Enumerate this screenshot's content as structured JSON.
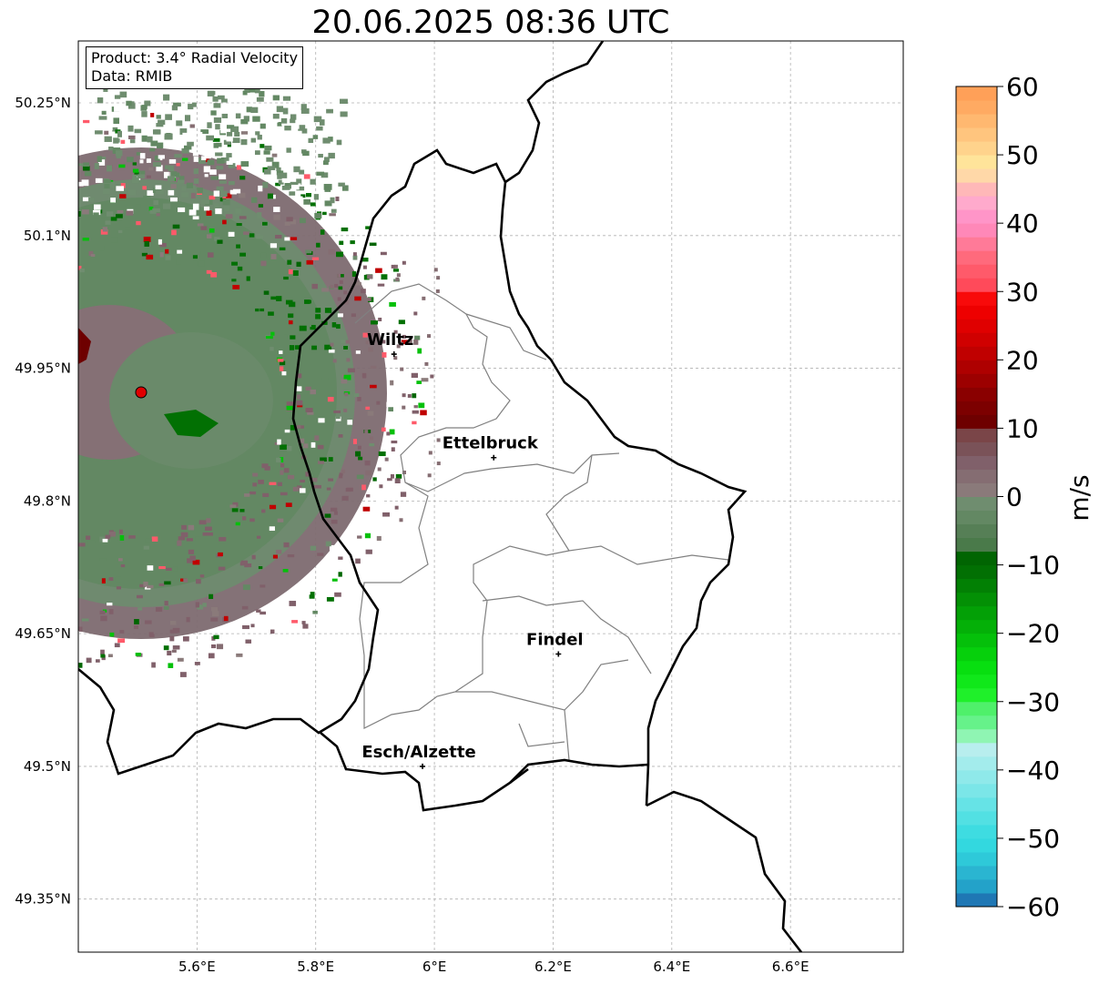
{
  "title": "20.06.2025 08:36 UTC",
  "info_box": {
    "product": "Product: 3.4° Radial Velocity",
    "data_source": "Data: RMIB"
  },
  "map": {
    "lon_range": [
      5.4,
      6.79
    ],
    "lat_range": [
      49.29,
      50.32
    ],
    "grid": true,
    "lon_ticks": [
      {
        "value": 5.6,
        "label": "5.6°E"
      },
      {
        "value": 5.8,
        "label": "5.8°E"
      },
      {
        "value": 6.0,
        "label": "6°E"
      },
      {
        "value": 6.2,
        "label": "6.2°E"
      },
      {
        "value": 6.4,
        "label": "6.4°E"
      },
      {
        "value": 6.6,
        "label": "6.6°E"
      }
    ],
    "lat_ticks": [
      {
        "value": 50.25,
        "label": "50.25°N"
      },
      {
        "value": 50.1,
        "label": "50.1°N"
      },
      {
        "value": 49.95,
        "label": "49.95°N"
      },
      {
        "value": 49.8,
        "label": "49.8°N"
      },
      {
        "value": 49.65,
        "label": "49.65°N"
      },
      {
        "value": 49.5,
        "label": "49.5°N"
      },
      {
        "value": 49.35,
        "label": "49.35°N"
      }
    ],
    "radar_site": {
      "lon": 5.505,
      "lat": 49.914,
      "color": "#e00000"
    },
    "cities": [
      {
        "name": "Wiltz",
        "lon": 5.932,
        "lat": 49.966
      },
      {
        "name": "Ettelbruck",
        "lon": 6.1,
        "lat": 49.849
      },
      {
        "name": "Findel",
        "lon": 6.209,
        "lat": 49.627
      },
      {
        "name": "Esch/Alzette",
        "lon": 5.98,
        "lat": 49.5
      }
    ]
  },
  "colorbar": {
    "label": "m/s",
    "min": -60,
    "max": 60,
    "ticks": [
      {
        "value": 60,
        "label": "60"
      },
      {
        "value": 50,
        "label": "50"
      },
      {
        "value": 40,
        "label": "40"
      },
      {
        "value": 30,
        "label": "30"
      },
      {
        "value": 20,
        "label": "20"
      },
      {
        "value": 10,
        "label": "10"
      },
      {
        "value": 0,
        "label": "0"
      },
      {
        "value": -10,
        "label": "−10"
      },
      {
        "value": -20,
        "label": "−20"
      },
      {
        "value": -30,
        "label": "−30"
      },
      {
        "value": -40,
        "label": "−40"
      },
      {
        "value": -50,
        "label": "−50"
      },
      {
        "value": -60,
        "label": "−60"
      }
    ],
    "color_stops": [
      {
        "from": -60,
        "to": -58,
        "color": "#1f77b4"
      },
      {
        "from": -58,
        "to": -56,
        "color": "#23a2c9"
      },
      {
        "from": -56,
        "to": -54,
        "color": "#2ab5d1"
      },
      {
        "from": -54,
        "to": -52,
        "color": "#2ec9d9"
      },
      {
        "from": -52,
        "to": -50,
        "color": "#33d8df"
      },
      {
        "from": -50,
        "to": -48,
        "color": "#3edce1"
      },
      {
        "from": -48,
        "to": -46,
        "color": "#52e0e3"
      },
      {
        "from": -46,
        "to": -44,
        "color": "#66e3e6"
      },
      {
        "from": -44,
        "to": -42,
        "color": "#7be6e8"
      },
      {
        "from": -42,
        "to": -40,
        "color": "#8fe9ea"
      },
      {
        "from": -40,
        "to": -38,
        "color": "#a3ecec"
      },
      {
        "from": -38,
        "to": -36,
        "color": "#b8eeee"
      },
      {
        "from": -36,
        "to": -34,
        "color": "#8ff5b3"
      },
      {
        "from": -34,
        "to": -32,
        "color": "#66f28a"
      },
      {
        "from": -32,
        "to": -30,
        "color": "#4ff06a"
      },
      {
        "from": -30,
        "to": -28,
        "color": "#1ff02a"
      },
      {
        "from": -28,
        "to": -26,
        "color": "#10e81a"
      },
      {
        "from": -26,
        "to": -24,
        "color": "#08df10"
      },
      {
        "from": -24,
        "to": -22,
        "color": "#06d00c"
      },
      {
        "from": -22,
        "to": -20,
        "color": "#05c00a"
      },
      {
        "from": -20,
        "to": -18,
        "color": "#04b008"
      },
      {
        "from": -18,
        "to": -16,
        "color": "#03a006"
      },
      {
        "from": -16,
        "to": -14,
        "color": "#039005"
      },
      {
        "from": -14,
        "to": -12,
        "color": "#028004"
      },
      {
        "from": -12,
        "to": -10,
        "color": "#027003"
      },
      {
        "from": -10,
        "to": -8,
        "color": "#016502"
      },
      {
        "from": -8,
        "to": -6,
        "color": "#4a7a4a"
      },
      {
        "from": -6,
        "to": -4,
        "color": "#567f56"
      },
      {
        "from": -4,
        "to": -2,
        "color": "#638863"
      },
      {
        "from": -2,
        "to": 0,
        "color": "#6f8d6f"
      },
      {
        "from": 0,
        "to": 2,
        "color": "#8a7a7a"
      },
      {
        "from": 2,
        "to": 4,
        "color": "#856d72"
      },
      {
        "from": 4,
        "to": 6,
        "color": "#80606a"
      },
      {
        "from": 6,
        "to": 8,
        "color": "#7a5258"
      },
      {
        "from": 8,
        "to": 10,
        "color": "#7a4548"
      },
      {
        "from": 10,
        "to": 12,
        "color": "#6e0000"
      },
      {
        "from": 12,
        "to": 14,
        "color": "#7c0000"
      },
      {
        "from": 14,
        "to": 16,
        "color": "#8a0000"
      },
      {
        "from": 16,
        "to": 18,
        "color": "#9c0000"
      },
      {
        "from": 18,
        "to": 20,
        "color": "#ae0000"
      },
      {
        "from": 20,
        "to": 22,
        "color": "#c00000"
      },
      {
        "from": 22,
        "to": 24,
        "color": "#d00000"
      },
      {
        "from": 24,
        "to": 26,
        "color": "#e00000"
      },
      {
        "from": 26,
        "to": 28,
        "color": "#ee0000"
      },
      {
        "from": 28,
        "to": 30,
        "color": "#f80a0a"
      },
      {
        "from": 30,
        "to": 32,
        "color": "#ff4a5a"
      },
      {
        "from": 32,
        "to": 34,
        "color": "#ff5a6a"
      },
      {
        "from": 34,
        "to": 36,
        "color": "#ff6a7c"
      },
      {
        "from": 36,
        "to": 38,
        "color": "#ff7a98"
      },
      {
        "from": 38,
        "to": 40,
        "color": "#ff88b8"
      },
      {
        "from": 40,
        "to": 42,
        "color": "#ff95c8"
      },
      {
        "from": 42,
        "to": 44,
        "color": "#ffaacc"
      },
      {
        "from": 44,
        "to": 46,
        "color": "#ffb8b8"
      },
      {
        "from": 46,
        "to": 48,
        "color": "#ffd8a8"
      },
      {
        "from": 48,
        "to": 50,
        "color": "#ffe49a"
      },
      {
        "from": 50,
        "to": 52,
        "color": "#ffd38c"
      },
      {
        "from": 52,
        "to": 54,
        "color": "#ffc57e"
      },
      {
        "from": 54,
        "to": 56,
        "color": "#ffb870"
      },
      {
        "from": 56,
        "to": 58,
        "color": "#ffaa62"
      },
      {
        "from": 58,
        "to": 60,
        "color": "#ffa058"
      }
    ]
  }
}
